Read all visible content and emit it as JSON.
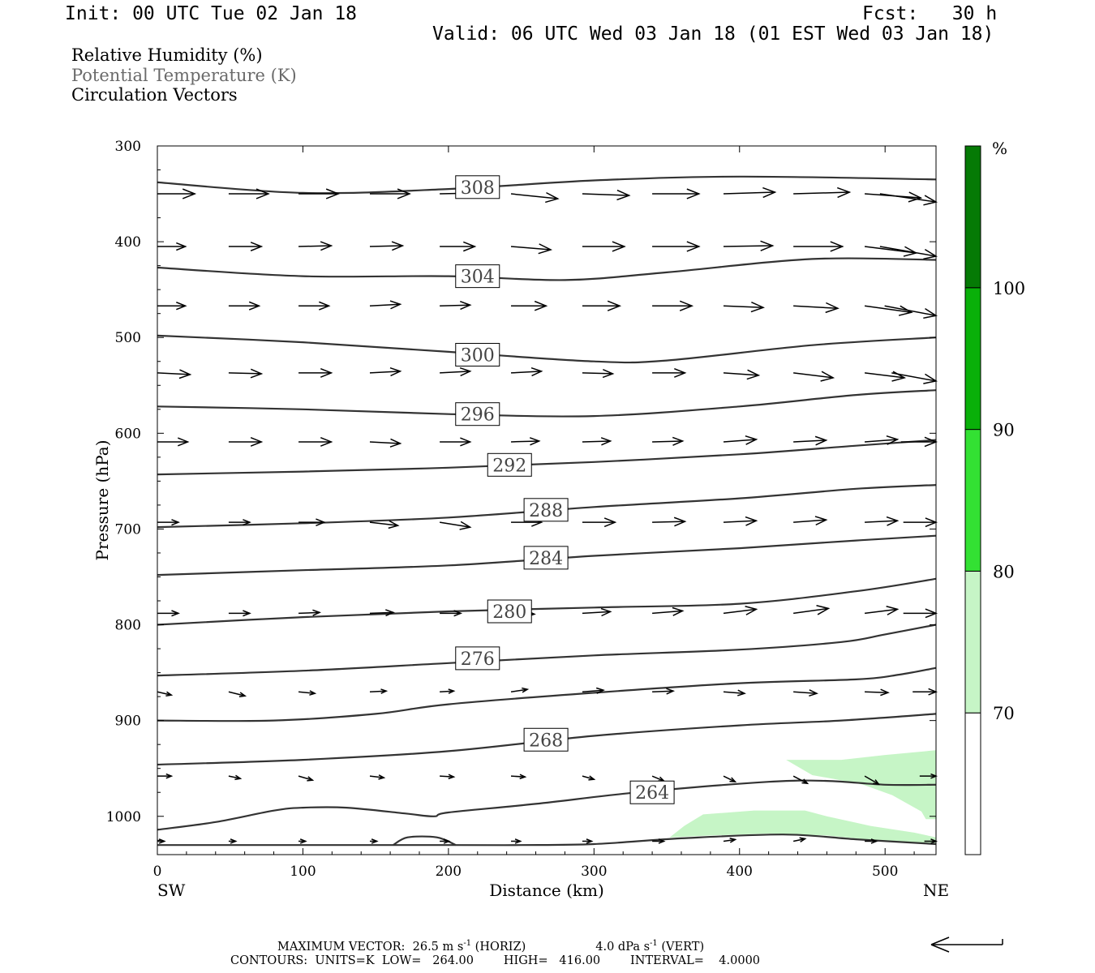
{
  "header": {
    "init": "Init: 00 UTC Tue 02 Jan 18",
    "fcst": "Fcst:   30 h",
    "valid": "Valid: 06 UTC Wed 03 Jan 18 (01 EST Wed 03 Jan 18)"
  },
  "fields": {
    "rh": "Relative Humidity (%)",
    "theta": "Potential Temperature (K)",
    "vectors": "Circulation Vectors"
  },
  "footer": {
    "maxvec_prefix": "MAXIMUM VECTOR:  26.5 m s",
    "maxvec_horiz": " (HORIZ)",
    "maxvec_vert_prefix": "4.0 dPa s",
    "maxvec_vert": " (VERT)",
    "exp": "-1",
    "contours": "CONTOURS:  UNITS=K  LOW=   264.00        HIGH=   416.00        INTERVAL=    4.0000"
  },
  "chart_data": {
    "type": "cross-section",
    "xlabel": "Distance (km)",
    "ylabel": "Pressure (hPa)",
    "xlim": [
      0,
      535
    ],
    "ylim": [
      300,
      1040
    ],
    "x_ticks": [
      0,
      100,
      200,
      300,
      400,
      500
    ],
    "y_ticks": [
      300,
      400,
      500,
      600,
      700,
      800,
      900,
      1000
    ],
    "x_end_labels": {
      "left": "SW",
      "right": "NE"
    },
    "grid": false,
    "contour_field": "Potential Temperature (K)",
    "contour_color": "#333333",
    "contours": [
      {
        "value": 308,
        "label": "308",
        "label_at": [
          220,
          343
        ],
        "points": [
          [
            0,
            338
          ],
          [
            100,
            349
          ],
          [
            200,
            345
          ],
          [
            300,
            336
          ],
          [
            400,
            332
          ],
          [
            535,
            335
          ]
        ]
      },
      {
        "value": 304,
        "label": "304",
        "label_at": [
          220,
          436
        ],
        "points": [
          [
            0,
            427
          ],
          [
            100,
            436
          ],
          [
            200,
            436
          ],
          [
            280,
            440
          ],
          [
            350,
            432
          ],
          [
            450,
            418
          ],
          [
            535,
            419
          ]
        ]
      },
      {
        "value": 300,
        "label": "300",
        "label_at": [
          220,
          518
        ],
        "points": [
          [
            0,
            498
          ],
          [
            100,
            505
          ],
          [
            200,
            515
          ],
          [
            300,
            525
          ],
          [
            350,
            524
          ],
          [
            450,
            508
          ],
          [
            535,
            500
          ]
        ]
      },
      {
        "value": 296,
        "label": "296",
        "label_at": [
          220,
          580
        ],
        "points": [
          [
            0,
            572
          ],
          [
            100,
            575
          ],
          [
            200,
            580
          ],
          [
            300,
            582
          ],
          [
            400,
            572
          ],
          [
            480,
            560
          ],
          [
            535,
            555
          ]
        ]
      },
      {
        "value": 292,
        "label": "292",
        "label_at": [
          242,
          633
        ],
        "points": [
          [
            0,
            643
          ],
          [
            100,
            640
          ],
          [
            200,
            636
          ],
          [
            300,
            630
          ],
          [
            400,
            622
          ],
          [
            480,
            613
          ],
          [
            535,
            607
          ]
        ]
      },
      {
        "value": 288,
        "label": "288",
        "label_at": [
          267,
          680
        ],
        "points": [
          [
            0,
            698
          ],
          [
            100,
            694
          ],
          [
            200,
            688
          ],
          [
            300,
            677
          ],
          [
            400,
            668
          ],
          [
            480,
            658
          ],
          [
            535,
            654
          ]
        ]
      },
      {
        "value": 284,
        "label": "284",
        "label_at": [
          267,
          730
        ],
        "points": [
          [
            0,
            748
          ],
          [
            100,
            743
          ],
          [
            200,
            738
          ],
          [
            300,
            728
          ],
          [
            400,
            720
          ],
          [
            480,
            712
          ],
          [
            535,
            707
          ]
        ]
      },
      {
        "value": 280,
        "label": "280",
        "label_at": [
          242,
          786
        ],
        "points": [
          [
            0,
            800
          ],
          [
            100,
            792
          ],
          [
            200,
            786
          ],
          [
            300,
            782
          ],
          [
            400,
            778
          ],
          [
            480,
            765
          ],
          [
            535,
            752
          ]
        ]
      },
      {
        "value": 276,
        "label": "276",
        "label_at": [
          220,
          835
        ],
        "points": [
          [
            0,
            853
          ],
          [
            100,
            848
          ],
          [
            200,
            840
          ],
          [
            300,
            832
          ],
          [
            400,
            826
          ],
          [
            470,
            818
          ],
          [
            500,
            810
          ],
          [
            535,
            800
          ]
        ]
      },
      {
        "value": 272,
        "label": "",
        "points": [
          [
            0,
            900
          ],
          [
            80,
            900
          ],
          [
            150,
            893
          ],
          [
            200,
            883
          ],
          [
            300,
            871
          ],
          [
            400,
            861
          ],
          [
            480,
            857
          ],
          [
            510,
            852
          ],
          [
            535,
            845
          ]
        ]
      },
      {
        "value": 268,
        "label": "268",
        "label_at": [
          267,
          920
        ],
        "points": [
          [
            0,
            946
          ],
          [
            100,
            941
          ],
          [
            200,
            932
          ],
          [
            300,
            916
          ],
          [
            400,
            905
          ],
          [
            470,
            900
          ],
          [
            535,
            893
          ]
        ]
      },
      {
        "value": 264,
        "label": "264",
        "label_at": [
          340,
          975
        ],
        "points": [
          [
            0,
            1014
          ],
          [
            40,
            1006
          ],
          [
            80,
            994
          ],
          [
            100,
            991
          ],
          [
            130,
            991
          ],
          [
            170,
            997
          ],
          [
            190,
            1000
          ],
          [
            200,
            996
          ],
          [
            260,
            987
          ],
          [
            330,
            975
          ],
          [
            420,
            964
          ],
          [
            460,
            963
          ],
          [
            500,
            967
          ],
          [
            535,
            967
          ]
        ]
      },
      {
        "value": 260,
        "label": "",
        "points": [
          [
            0,
            1030
          ],
          [
            200,
            1030
          ],
          [
            250,
            1030
          ],
          [
            300,
            1029
          ],
          [
            360,
            1023
          ],
          [
            430,
            1019
          ],
          [
            480,
            1024
          ],
          [
            535,
            1029
          ]
        ]
      },
      {
        "value": 256,
        "label": "",
        "points": [
          [
            162,
            1030
          ],
          [
            172,
            1022
          ],
          [
            192,
            1022
          ],
          [
            205,
            1030
          ]
        ]
      }
    ],
    "rh_shading": {
      "label": "Relative Humidity (%)",
      "unit_label": "%",
      "colorbar_levels": [
        70,
        80,
        90,
        100
      ],
      "colors": [
        "#ffffff",
        "#c6f5c6",
        "#33e133",
        "#09b009",
        "#057a05"
      ],
      "regions": [
        {
          "range": "70-80",
          "points": [
            [
              432,
              941
            ],
            [
              470,
              941
            ],
            [
              500,
              936
            ],
            [
              535,
              931
            ],
            [
              535,
              1003
            ],
            [
              528,
              1003
            ],
            [
              525,
              995
            ],
            [
              505,
              978
            ],
            [
              485,
              967
            ],
            [
              465,
              961
            ],
            [
              450,
              957
            ]
          ]
        },
        {
          "range": "70-80",
          "points": [
            [
              352,
              1022
            ],
            [
              362,
              1010
            ],
            [
              375,
              998
            ],
            [
              410,
              994
            ],
            [
              445,
              994
            ],
            [
              460,
              1000
            ],
            [
              490,
              1010
            ],
            [
              520,
              1017
            ],
            [
              535,
              1022
            ],
            [
              535,
              1028
            ],
            [
              500,
              1026
            ],
            [
              460,
              1020
            ],
            [
              420,
              1018
            ],
            [
              380,
              1020
            ]
          ]
        }
      ]
    },
    "vectors": {
      "label": "Circulation Vectors",
      "color": "#000000",
      "rows": [
        {
          "p": 350,
          "x": [
            0,
            49,
            97,
            146,
            194,
            243,
            292,
            340,
            389,
            437,
            486,
            535
          ],
          "u": [
            0.16,
            0.17,
            0.17,
            0.17,
            0.17,
            0.2,
            0.2,
            0.2,
            0.22,
            0.24,
            0.24,
            0.24
          ],
          "v": [
            0,
            0,
            0,
            0,
            -1,
            6,
            2,
            0,
            -2,
            -2,
            5,
            10
          ]
        },
        {
          "p": 405,
          "x": [
            0,
            49,
            97,
            146,
            194,
            243,
            292,
            340,
            389,
            437,
            486,
            535
          ],
          "u": [
            0.12,
            0.14,
            0.14,
            0.14,
            0.15,
            0.17,
            0.18,
            0.2,
            0.21,
            0.21,
            0.22,
            0.24
          ],
          "v": [
            0,
            0,
            -1,
            -1,
            0,
            4,
            0,
            0,
            -1,
            0,
            8,
            12
          ]
        },
        {
          "p": 467,
          "x": [
            0,
            49,
            97,
            146,
            194,
            243,
            292,
            340,
            389,
            437,
            486,
            535
          ],
          "u": [
            0.12,
            0.13,
            0.13,
            0.13,
            0.13,
            0.15,
            0.16,
            0.17,
            0.17,
            0.19,
            0.2,
            0.22
          ],
          "v": [
            0,
            0,
            0,
            -2,
            -1,
            0,
            0,
            0,
            2,
            3,
            8,
            12
          ]
        },
        {
          "p": 537,
          "x": [
            0,
            49,
            97,
            146,
            194,
            243,
            292,
            340,
            389,
            437,
            486,
            535
          ],
          "u": [
            0.14,
            0.14,
            0.14,
            0.13,
            0.13,
            0.13,
            0.13,
            0.14,
            0.15,
            0.17,
            0.17,
            0.19
          ],
          "v": [
            2,
            1,
            0,
            -2,
            -2,
            -2,
            1,
            0,
            3,
            6,
            6,
            10
          ]
        },
        {
          "p": 609,
          "x": [
            0,
            49,
            97,
            146,
            194,
            243,
            292,
            340,
            389,
            437,
            486,
            535
          ],
          "u": [
            0.13,
            0.14,
            0.14,
            0.13,
            0.13,
            0.12,
            0.12,
            0.13,
            0.14,
            0.14,
            0.14,
            0.15
          ],
          "v": [
            0,
            0,
            0,
            2,
            0,
            -1,
            -1,
            -1,
            -3,
            -2,
            -3,
            0
          ]
        },
        {
          "p": 693,
          "x": [
            0,
            49,
            97,
            146,
            194,
            243,
            292,
            340,
            389,
            437,
            486,
            535
          ],
          "u": [
            0.09,
            0.09,
            0.11,
            0.12,
            0.13,
            0.13,
            0.14,
            0.14,
            0.14,
            0.14,
            0.14,
            0.14
          ],
          "v": [
            0,
            0,
            0,
            4,
            6,
            0,
            0,
            -1,
            -2,
            -3,
            -2,
            0
          ]
        },
        {
          "p": 788,
          "x": [
            0,
            49,
            97,
            146,
            194,
            243,
            292,
            340,
            389,
            437,
            486,
            535
          ],
          "u": [
            0.09,
            0.09,
            0.09,
            0.1,
            0.09,
            0.1,
            0.12,
            0.13,
            0.14,
            0.15,
            0.14,
            0.14
          ],
          "v": [
            0,
            0,
            -1,
            -1,
            0,
            1,
            -2,
            -3,
            -5,
            -6,
            -5,
            0
          ]
        },
        {
          "p": 870,
          "x": [
            0,
            49,
            97,
            146,
            194,
            243,
            292,
            340,
            389,
            437,
            486,
            535
          ],
          "u": [
            0.06,
            0.07,
            0.07,
            0.07,
            0.06,
            0.07,
            0.09,
            0.09,
            0.09,
            0.1,
            0.1,
            0.1
          ],
          "v": [
            4,
            5,
            2,
            -1,
            -1,
            -3,
            -2,
            -1,
            2,
            2,
            1,
            0
          ]
        },
        {
          "p": 958,
          "x": [
            0,
            49,
            97,
            146,
            194,
            243,
            292,
            340,
            389,
            437,
            486,
            535
          ],
          "u": [
            0.06,
            0.05,
            0.06,
            0.06,
            0.06,
            0.06,
            0.05,
            0.05,
            0.05,
            0.06,
            0.06,
            0.07
          ],
          "v": [
            0,
            3,
            5,
            2,
            1,
            1,
            4,
            6,
            7,
            9,
            10,
            0
          ]
        },
        {
          "p": 1026,
          "x": [
            0,
            49,
            97,
            146,
            194,
            243,
            292,
            340,
            389,
            437,
            486,
            535
          ],
          "u": [
            0.03,
            0.03,
            0.03,
            0.03,
            0.04,
            0.04,
            0.04,
            0.05,
            0.05,
            0.05,
            0.05,
            0.05
          ],
          "v": [
            0,
            0,
            0,
            0,
            0,
            0,
            0,
            0,
            -2,
            -3,
            0,
            0
          ]
        }
      ]
    }
  }
}
